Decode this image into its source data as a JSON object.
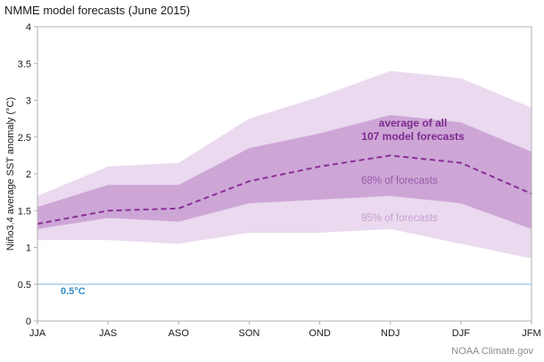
{
  "header": {
    "title": "NMME model forecasts (June 2015)"
  },
  "footer": {
    "credit": "NOAA Climate.gov"
  },
  "annotations": {
    "average_line1": "average of all",
    "average_line2": "107 model forecasts",
    "band68_label": "68% of forecasts",
    "band95_label": "95% of forecasts",
    "threshold_label": "0.5°C"
  },
  "chart_data": {
    "type": "line",
    "title": "NMME model forecasts (June 2015)",
    "xlabel": "",
    "ylabel": "Niño3.4 average SST anomaly (°C)",
    "categories": [
      "JJA",
      "JAS",
      "ASO",
      "SON",
      "OND",
      "NDJ",
      "DJF",
      "JFM"
    ],
    "ylim": [
      0,
      4
    ],
    "yticks": [
      0,
      0.5,
      1,
      1.5,
      2,
      2.5,
      3,
      3.5,
      4
    ],
    "ytick_labels": [
      "0",
      "0.5",
      "1",
      "1.5",
      "2",
      "2.5",
      "3",
      "3.5",
      "4"
    ],
    "grid": false,
    "legend_position": "none",
    "mean": {
      "name": "average of all 107 model forecasts",
      "values": [
        1.32,
        1.5,
        1.53,
        1.9,
        2.1,
        2.25,
        2.15,
        1.73
      ]
    },
    "bands": [
      {
        "name": "68% of forecasts",
        "upper": [
          1.55,
          1.85,
          1.85,
          2.35,
          2.55,
          2.8,
          2.7,
          2.3
        ],
        "lower": [
          1.25,
          1.4,
          1.35,
          1.6,
          1.65,
          1.7,
          1.6,
          1.25
        ]
      },
      {
        "name": "95% of forecasts",
        "upper": [
          1.7,
          2.1,
          2.15,
          2.75,
          3.05,
          3.4,
          3.3,
          2.9
        ],
        "lower": [
          1.1,
          1.1,
          1.05,
          1.2,
          1.2,
          1.25,
          1.05,
          0.85
        ]
      }
    ],
    "reference_line": {
      "value": 0.5,
      "label": "0.5°C"
    },
    "colors": {
      "mean": "#8b2f97",
      "band68": "#cda6d6",
      "band95": "#ead9ef",
      "reference": "#a9cfe8",
      "axis": "#b0b0b0",
      "tick_text": "#1a1a1a",
      "annotation_avg": "#7c2b8e",
      "annotation_68": "#9b59ab",
      "annotation_95": "#c6a0cf",
      "threshold": "#2f8fcc"
    }
  }
}
